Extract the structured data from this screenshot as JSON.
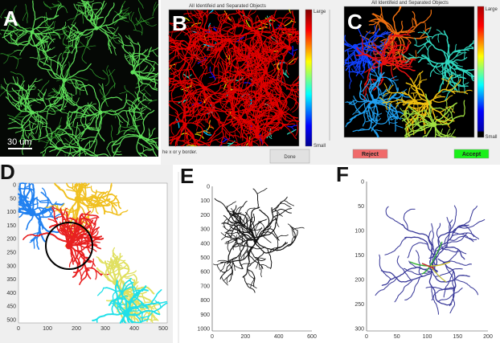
{
  "panels": {
    "A": {
      "label": "A",
      "scale_bar": "30 um",
      "color": "#3ec83a"
    },
    "B": {
      "label": "B",
      "title": "All Identifeid and Separated Objects",
      "colorbar_top": "Large",
      "colorbar_bottom": "Small",
      "status_text": "he x or y border.",
      "done_button": "Done"
    },
    "C": {
      "label": "C",
      "title": "All Identifeid and Separated Objects",
      "colorbar_top": "Large",
      "colorbar_bottom": "Small",
      "reject_button": "Reject",
      "accept_button": "Accept",
      "reject_color": "#f06a6a",
      "accept_color": "#19f019"
    },
    "D": {
      "label": "D",
      "x_ticks": [
        "0",
        "100",
        "200",
        "300",
        "400",
        "500"
      ],
      "y_ticks": [
        "0",
        "50",
        "100",
        "150",
        "200",
        "250",
        "300",
        "350",
        "400",
        "450",
        "500"
      ]
    },
    "E": {
      "label": "E",
      "x_ticks": [
        "0",
        "200",
        "400",
        "600"
      ],
      "y_ticks": [
        "0",
        "100",
        "200",
        "300",
        "400",
        "500",
        "600",
        "700",
        "800",
        "900",
        "1000"
      ]
    },
    "F": {
      "label": "F",
      "x_ticks": [
        "0",
        "50",
        "100",
        "150",
        "200"
      ],
      "y_ticks": [
        "0",
        "50",
        "100",
        "150",
        "200",
        "250",
        "300"
      ]
    }
  }
}
